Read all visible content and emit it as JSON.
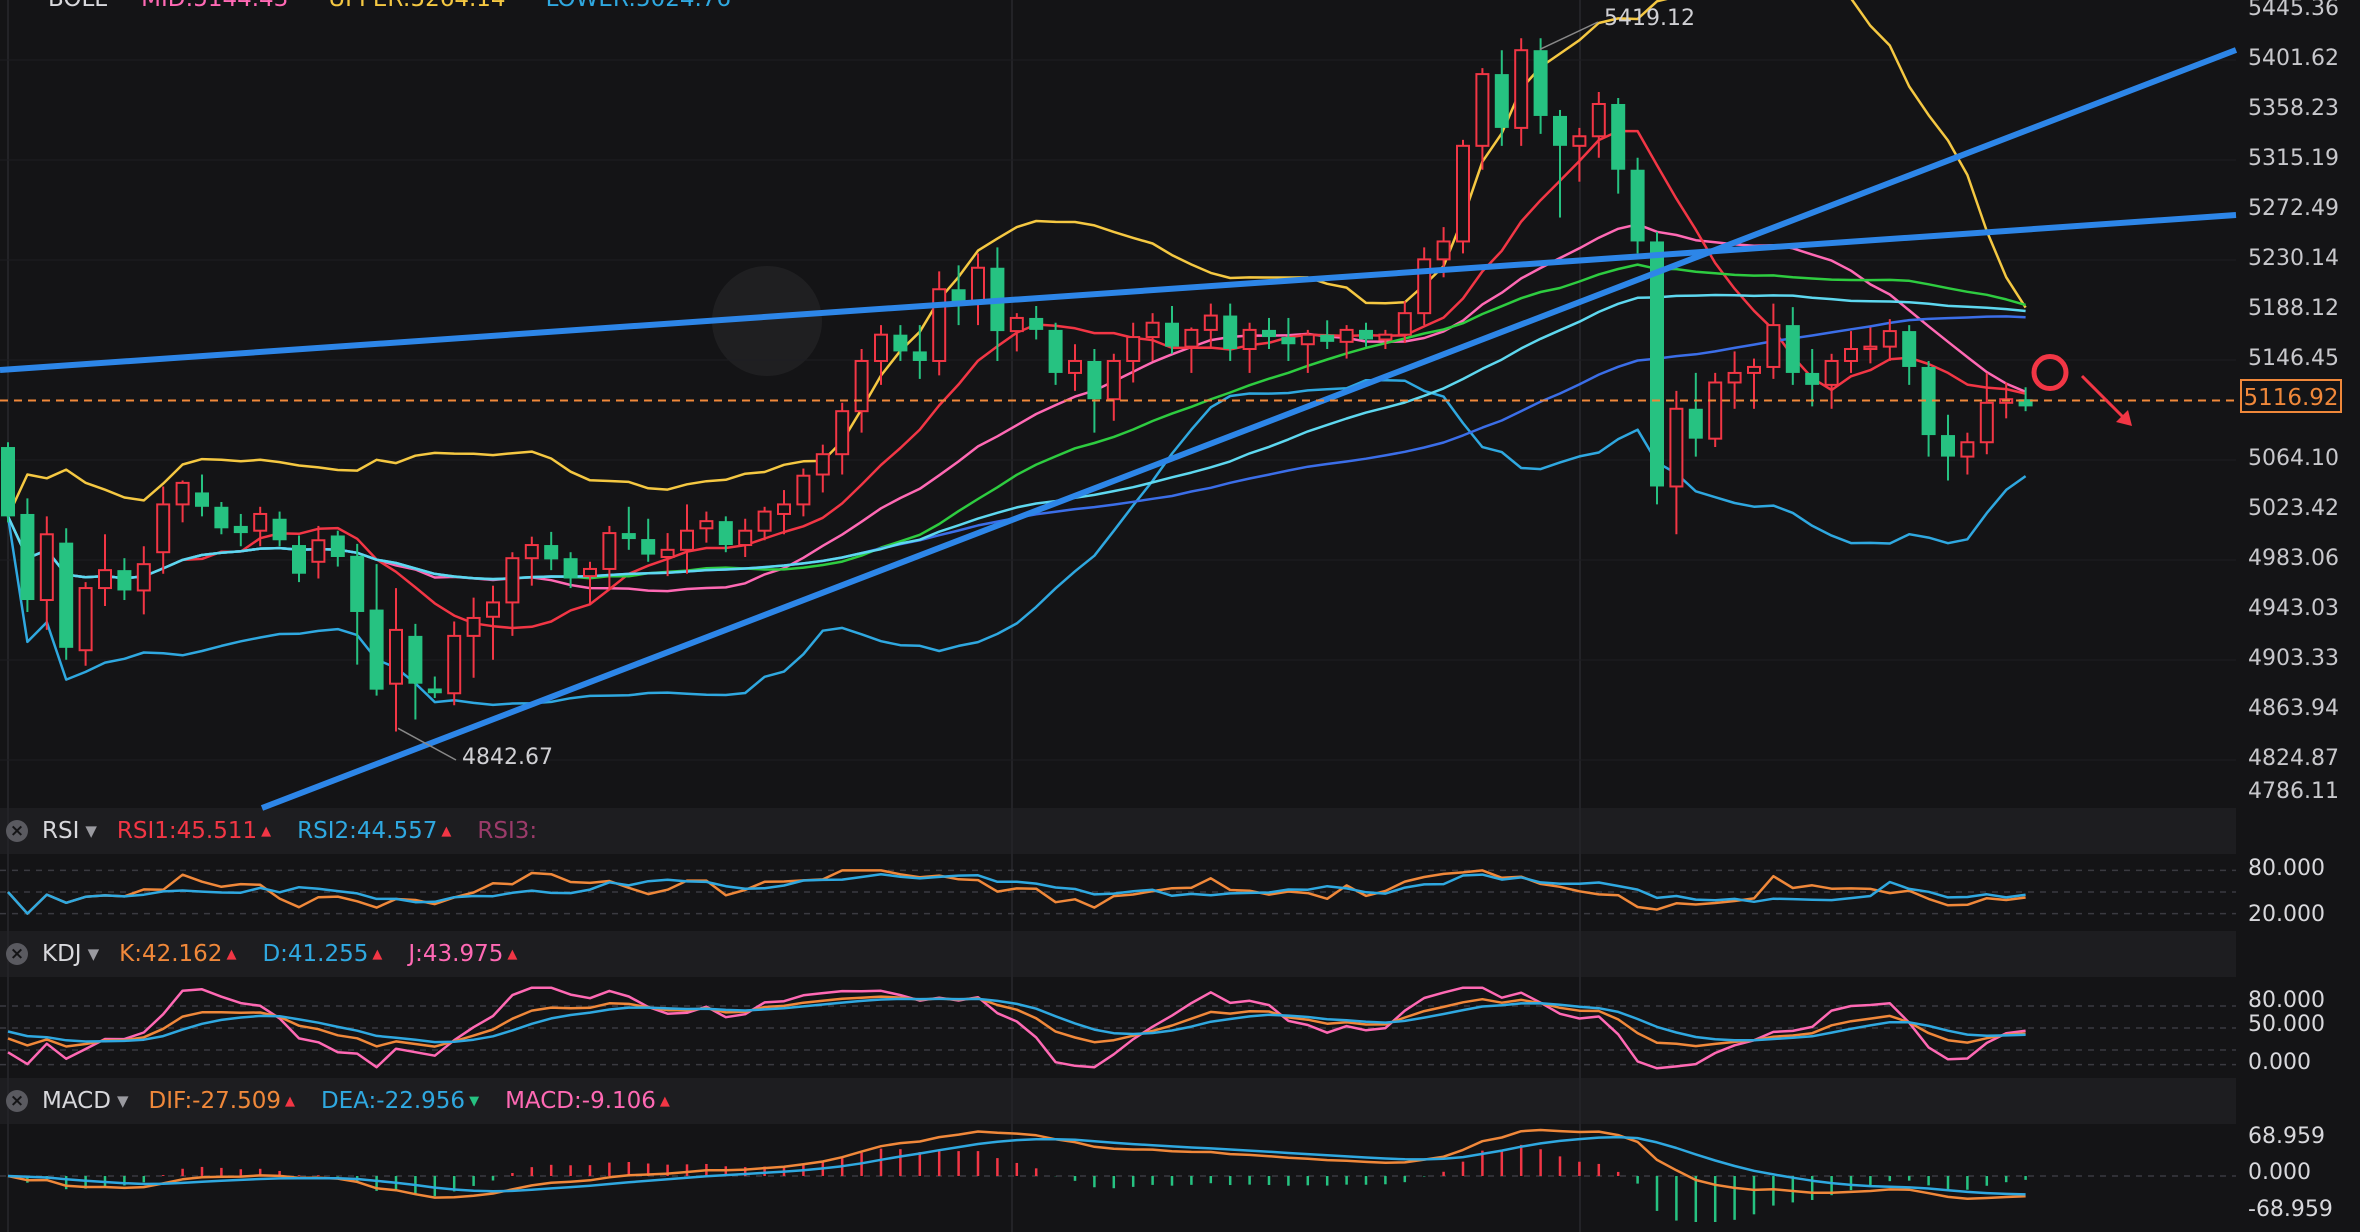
{
  "colors": {
    "up": "#f23645",
    "down": "#26c281",
    "mid": "#ff69b4",
    "upper": "#f5c842",
    "lower": "#2fa8e0",
    "ma_red": "#f23645",
    "ma_green": "#2ecc40",
    "ma_blue": "#3b6ee8",
    "ma_cyan": "#5ed8f0",
    "trendline": "#2d86e8",
    "last_price": "#f0883a",
    "rsi1": "#f0883a",
    "rsi2": "#2fa8e0",
    "rsi3": "#9b3b6a",
    "kdj_k": "#f0883a",
    "kdj_d": "#2fa8e0",
    "kdj_j": "#ff69b4",
    "macd_dif": "#f0883a",
    "macd_dea": "#2fa8e0",
    "macd_hist_up": "#f23645",
    "macd_hist_down": "#26c281",
    "annotation": "#f23645"
  },
  "boll_header": {
    "name": "BOLL",
    "mid": "MID:5144.43",
    "upper": "UPPER:5264.14",
    "lower": "LOWER:5024.76"
  },
  "rsi_header": {
    "name": "RSI",
    "rsi1": "RSI1:45.511",
    "rsi2": "RSI2:44.557",
    "rsi3": "RSI3:"
  },
  "kdj_header": {
    "name": "KDJ",
    "k": "K:42.162",
    "d": "D:41.255",
    "j": "J:43.975"
  },
  "macd_header": {
    "name": "MACD",
    "dif": "DIF:-27.509",
    "dea": "DEA:-22.956",
    "macd": "MACD:-9.106"
  },
  "icons": {
    "close": "close-circle-icon",
    "dropdown": "chevron-down-icon",
    "up": "triangle-up-icon",
    "down": "triangle-down-icon"
  },
  "price_axis": [
    "5445.36",
    "5401.62",
    "5358.23",
    "5315.19",
    "5272.49",
    "5230.14",
    "5188.12",
    "5146.45",
    "5064.10",
    "5023.42",
    "4983.06",
    "4943.03",
    "4903.33",
    "4863.94",
    "4824.87",
    "4786.11"
  ],
  "last_price": "5116.92",
  "rsi_axis": [
    "80.000",
    "20.000"
  ],
  "kdj_axis": [
    "80.000",
    "50.000",
    "0.000"
  ],
  "macd_axis": [
    "68.959",
    "0.000",
    "-68.959"
  ],
  "high_label": "5419.12",
  "low_label": "4842.67",
  "chart_data": {
    "type": "candlestick",
    "candles_ohlc": [
      [
        5078,
        5082,
        5015,
        5020
      ],
      [
        5022,
        5035,
        4940,
        4950
      ],
      [
        4950,
        5020,
        4925,
        5005
      ],
      [
        4998,
        5010,
        4900,
        4910
      ],
      [
        4908,
        4965,
        4895,
        4960
      ],
      [
        4960,
        5005,
        4945,
        4975
      ],
      [
        4975,
        4985,
        4950,
        4958
      ],
      [
        4958,
        4995,
        4938,
        4980
      ],
      [
        4990,
        5045,
        4972,
        5030
      ],
      [
        5030,
        5050,
        5015,
        5048
      ],
      [
        5040,
        5055,
        5020,
        5028
      ],
      [
        5028,
        5032,
        5005,
        5010
      ],
      [
        5012,
        5022,
        4995,
        5006
      ],
      [
        5008,
        5028,
        4995,
        5022
      ],
      [
        5018,
        5024,
        4995,
        5000
      ],
      [
        4996,
        5004,
        4965,
        4972
      ],
      [
        4982,
        5012,
        4968,
        5000
      ],
      [
        5004,
        5008,
        4978,
        4986
      ],
      [
        4987,
        4997,
        4896,
        4940
      ],
      [
        4942,
        4980,
        4870,
        4875
      ],
      [
        4880,
        4960,
        4840,
        4925
      ],
      [
        4920,
        4930,
        4850,
        4880
      ],
      [
        4876,
        4886,
        4868,
        4872
      ],
      [
        4872,
        4932,
        4862,
        4920
      ],
      [
        4920,
        4952,
        4885,
        4935
      ],
      [
        4936,
        4962,
        4900,
        4948
      ],
      [
        4948,
        4990,
        4920,
        4985
      ],
      [
        4985,
        5003,
        4962,
        4996
      ],
      [
        4996,
        5007,
        4975,
        4984
      ],
      [
        4985,
        4990,
        4960,
        4968
      ],
      [
        4970,
        4982,
        4946,
        4976
      ],
      [
        4976,
        5012,
        4960,
        5006
      ],
      [
        5006,
        5028,
        4992,
        5001
      ],
      [
        5001,
        5018,
        4982,
        4988
      ],
      [
        4986,
        5006,
        4970,
        4992
      ],
      [
        4992,
        5030,
        4972,
        5008
      ],
      [
        5010,
        5024,
        4998,
        5016
      ],
      [
        5016,
        5020,
        4990,
        4996
      ],
      [
        4996,
        5018,
        4986,
        5008
      ],
      [
        5008,
        5028,
        5000,
        5024
      ],
      [
        5022,
        5042,
        5005,
        5030
      ],
      [
        5030,
        5060,
        5020,
        5054
      ],
      [
        5055,
        5080,
        5040,
        5072
      ],
      [
        5072,
        5115,
        5055,
        5108
      ],
      [
        5108,
        5160,
        5090,
        5150
      ],
      [
        5150,
        5180,
        5130,
        5172
      ],
      [
        5172,
        5180,
        5150,
        5158
      ],
      [
        5158,
        5180,
        5135,
        5150
      ],
      [
        5150,
        5225,
        5138,
        5210
      ],
      [
        5210,
        5230,
        5180,
        5200
      ],
      [
        5200,
        5240,
        5180,
        5228
      ],
      [
        5228,
        5245,
        5150,
        5175
      ],
      [
        5175,
        5190,
        5158,
        5186
      ],
      [
        5186,
        5196,
        5168,
        5176
      ],
      [
        5176,
        5182,
        5130,
        5140
      ],
      [
        5140,
        5164,
        5125,
        5150
      ],
      [
        5150,
        5160,
        5090,
        5118
      ],
      [
        5118,
        5156,
        5100,
        5150
      ],
      [
        5150,
        5182,
        5132,
        5170
      ],
      [
        5170,
        5190,
        5150,
        5182
      ],
      [
        5182,
        5196,
        5156,
        5162
      ],
      [
        5162,
        5178,
        5140,
        5176
      ],
      [
        5176,
        5198,
        5160,
        5188
      ],
      [
        5188,
        5198,
        5150,
        5160
      ],
      [
        5160,
        5182,
        5140,
        5176
      ],
      [
        5176,
        5186,
        5160,
        5170
      ],
      [
        5170,
        5186,
        5150,
        5164
      ],
      [
        5164,
        5176,
        5140,
        5172
      ],
      [
        5172,
        5184,
        5160,
        5166
      ],
      [
        5166,
        5180,
        5152,
        5176
      ],
      [
        5176,
        5182,
        5162,
        5168
      ],
      [
        5168,
        5176,
        5160,
        5172
      ],
      [
        5172,
        5200,
        5165,
        5190
      ],
      [
        5190,
        5245,
        5180,
        5235
      ],
      [
        5235,
        5262,
        5220,
        5250
      ],
      [
        5250,
        5335,
        5240,
        5330
      ],
      [
        5330,
        5395,
        5310,
        5390
      ],
      [
        5390,
        5410,
        5330,
        5345
      ],
      [
        5345,
        5420,
        5330,
        5410
      ],
      [
        5410,
        5420,
        5340,
        5355
      ],
      [
        5355,
        5360,
        5270,
        5330
      ],
      [
        5330,
        5345,
        5300,
        5338
      ],
      [
        5338,
        5375,
        5320,
        5365
      ],
      [
        5365,
        5370,
        5290,
        5310
      ],
      [
        5310,
        5320,
        5240,
        5250
      ],
      [
        5250,
        5258,
        5030,
        5045
      ],
      [
        5045,
        5125,
        5005,
        5110
      ],
      [
        5110,
        5140,
        5070,
        5085
      ],
      [
        5085,
        5140,
        5078,
        5132
      ],
      [
        5132,
        5158,
        5110,
        5140
      ],
      [
        5140,
        5152,
        5110,
        5145
      ],
      [
        5145,
        5198,
        5135,
        5180
      ],
      [
        5180,
        5195,
        5130,
        5140
      ],
      [
        5140,
        5160,
        5112,
        5130
      ],
      [
        5130,
        5156,
        5110,
        5150
      ],
      [
        5150,
        5175,
        5140,
        5160
      ],
      [
        5160,
        5178,
        5148,
        5162
      ],
      [
        5162,
        5185,
        5150,
        5175
      ],
      [
        5175,
        5180,
        5130,
        5145
      ],
      [
        5145,
        5150,
        5070,
        5088
      ],
      [
        5088,
        5105,
        5050,
        5070
      ],
      [
        5070,
        5090,
        5055,
        5082
      ],
      [
        5082,
        5140,
        5072,
        5115
      ],
      [
        5115,
        5132,
        5102,
        5118
      ],
      [
        5118,
        5128,
        5108,
        5112
      ]
    ],
    "price_range": [
      4776,
      5452
    ],
    "last_price": 5116.92,
    "annotations": [
      {
        "type": "high",
        "value": 5419.12
      },
      {
        "type": "low",
        "value": 4842.67
      },
      {
        "type": "circle",
        "at_candle": 105,
        "value": 5142
      },
      {
        "type": "arrow",
        "direction": "down-right"
      }
    ]
  }
}
